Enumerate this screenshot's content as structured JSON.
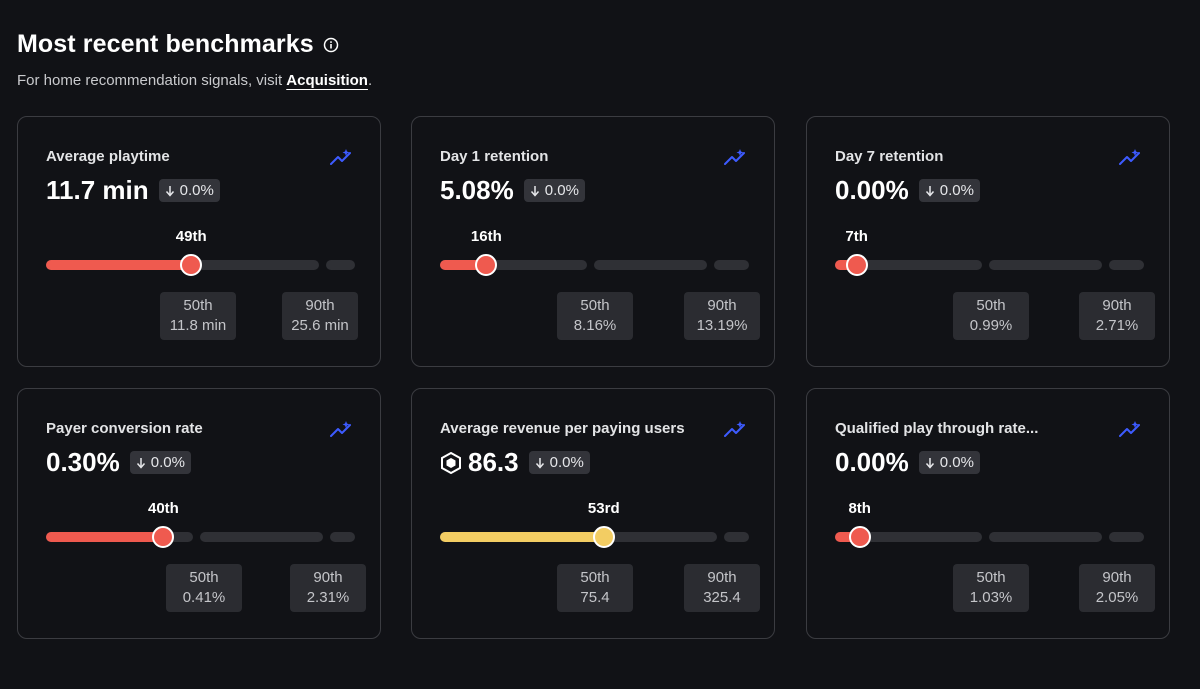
{
  "header": {
    "title": "Most recent benchmarks",
    "subtitle_prefix": "For home recommendation signals, visit ",
    "subtitle_link": "Acquisition",
    "subtitle_suffix": "."
  },
  "colors": {
    "red": "#ef5a4f",
    "yellow": "#f3cd63",
    "trend_blue": "#3d5bff"
  },
  "cards": [
    {
      "title": "Average playtime",
      "value": "11.7 min",
      "delta": "0.0%",
      "percentile_label": "49th",
      "percentile_position": 0.47,
      "fill_color": "red",
      "p50_label": "50th",
      "p50_value": "11.8 min",
      "p90_label": "90th",
      "p90_value": "25.6 min",
      "has_currency_icon": false
    },
    {
      "title": "Day 1 retention",
      "value": "5.08%",
      "delta": "0.0%",
      "percentile_label": "16th",
      "percentile_position": 0.15,
      "fill_color": "red",
      "p50_label": "50th",
      "p50_value": "8.16%",
      "p90_label": "90th",
      "p90_value": "13.19%",
      "has_currency_icon": false
    },
    {
      "title": "Day 7 retention",
      "value": "0.00%",
      "delta": "0.0%",
      "percentile_label": "7th",
      "percentile_position": 0.07,
      "fill_color": "red",
      "p50_label": "50th",
      "p50_value": "0.99%",
      "p90_label": "90th",
      "p90_value": "2.71%",
      "has_currency_icon": false
    },
    {
      "title": "Payer conversion rate",
      "value": "0.30%",
      "delta": "0.0%",
      "percentile_label": "40th",
      "percentile_position": 0.38,
      "fill_color": "red",
      "p50_label": "50th",
      "p50_value": "0.41%",
      "p90_label": "90th",
      "p90_value": "2.31%",
      "has_currency_icon": false
    },
    {
      "title": "Average revenue per paying users",
      "value": "86.3",
      "delta": "0.0%",
      "percentile_label": "53rd",
      "percentile_position": 0.53,
      "fill_color": "yellow",
      "p50_label": "50th",
      "p50_value": "75.4",
      "p90_label": "90th",
      "p90_value": "325.4",
      "has_currency_icon": true
    },
    {
      "title": "Qualified play through rate...",
      "value": "0.00%",
      "delta": "0.0%",
      "percentile_label": "8th",
      "percentile_position": 0.08,
      "fill_color": "red",
      "p50_label": "50th",
      "p50_value": "1.03%",
      "p90_label": "90th",
      "p90_value": "2.05%",
      "has_currency_icon": false
    }
  ]
}
